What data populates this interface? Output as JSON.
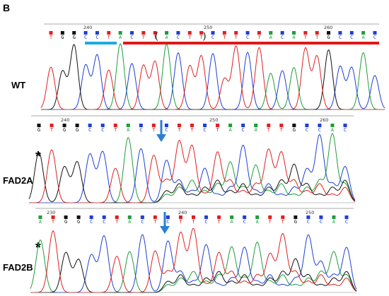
{
  "panel_letter": "B",
  "colors": {
    "A": "#1e9e3a",
    "C": "#1f3fd6",
    "G": "#111111",
    "T": "#e02020",
    "highlight_blue": "#22a8e0",
    "highlight_red": "#e01818",
    "arrow": "#2a7fd4"
  },
  "tracks": [
    {
      "label": "WT",
      "asterisk": "",
      "positions": [
        "240",
        "250",
        "260"
      ],
      "sequence": "TGGCCTACTTACTTCTTCTACATTGCCAC",
      "parens": [
        "(",
        ")"
      ],
      "has_arrow": false,
      "highlights": [
        "blue-bar",
        "red-bar"
      ]
    },
    {
      "label": "FAD2A",
      "asterisk": "*",
      "positions": [
        "240",
        "250",
        "260"
      ],
      "sequence": "GTGGCCTACTCTTCTACATTGCCAC",
      "parens": [],
      "has_arrow": true,
      "highlights": []
    },
    {
      "label": "FAD2B",
      "asterisk": "*",
      "positions": [
        "230",
        "240",
        "250"
      ],
      "sequence": "ATGGCCTACTCTTCTACATTGCCAC",
      "parens": [],
      "has_arrow": true,
      "highlights": []
    }
  ]
}
